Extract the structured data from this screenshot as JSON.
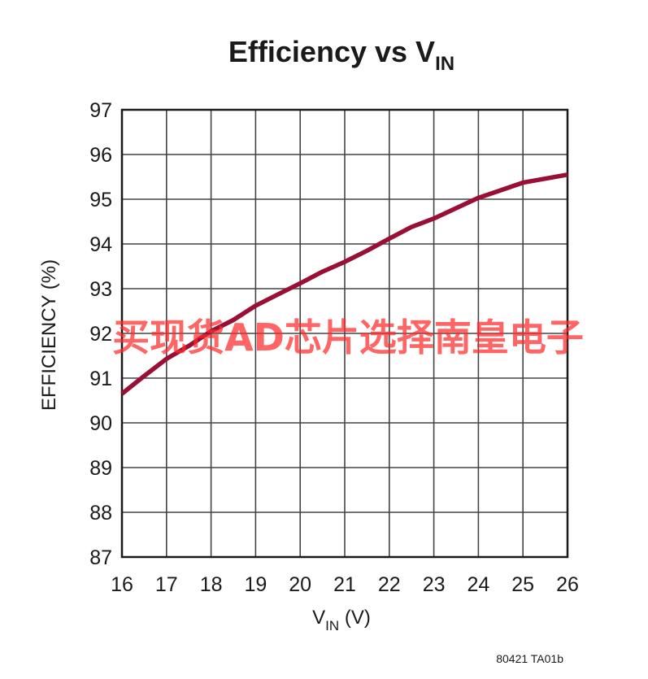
{
  "chart_data": {
    "type": "line",
    "title": "Efficiency vs V",
    "title_subscript": "IN",
    "xlabel": "V",
    "xlabel_subscript": "IN",
    "xlabel_suffix": " (V)",
    "ylabel": "EFFICIENCY (%)",
    "xlim": [
      16,
      26
    ],
    "ylim": [
      87,
      97
    ],
    "xticks": [
      16,
      17,
      18,
      19,
      20,
      21,
      22,
      23,
      24,
      25,
      26
    ],
    "yticks": [
      87,
      88,
      89,
      90,
      91,
      92,
      93,
      94,
      95,
      96,
      97
    ],
    "grid": true,
    "legend": "none",
    "series": [
      {
        "color": "#9a0f35",
        "x": [
          16,
          16.5,
          17,
          17.5,
          18,
          18.5,
          19,
          19.5,
          20,
          20.5,
          21,
          21.5,
          22,
          22.5,
          23,
          23.5,
          24,
          24.5,
          25,
          25.5,
          26
        ],
        "y": [
          90.65,
          91.05,
          91.43,
          91.72,
          92.05,
          92.3,
          92.62,
          92.87,
          93.12,
          93.38,
          93.6,
          93.85,
          94.12,
          94.38,
          94.57,
          94.8,
          95.03,
          95.2,
          95.37,
          95.46,
          95.55
        ]
      }
    ]
  },
  "footnote": "80421 TA01b",
  "watermark": "买现货AD芯片选择南皇电子"
}
